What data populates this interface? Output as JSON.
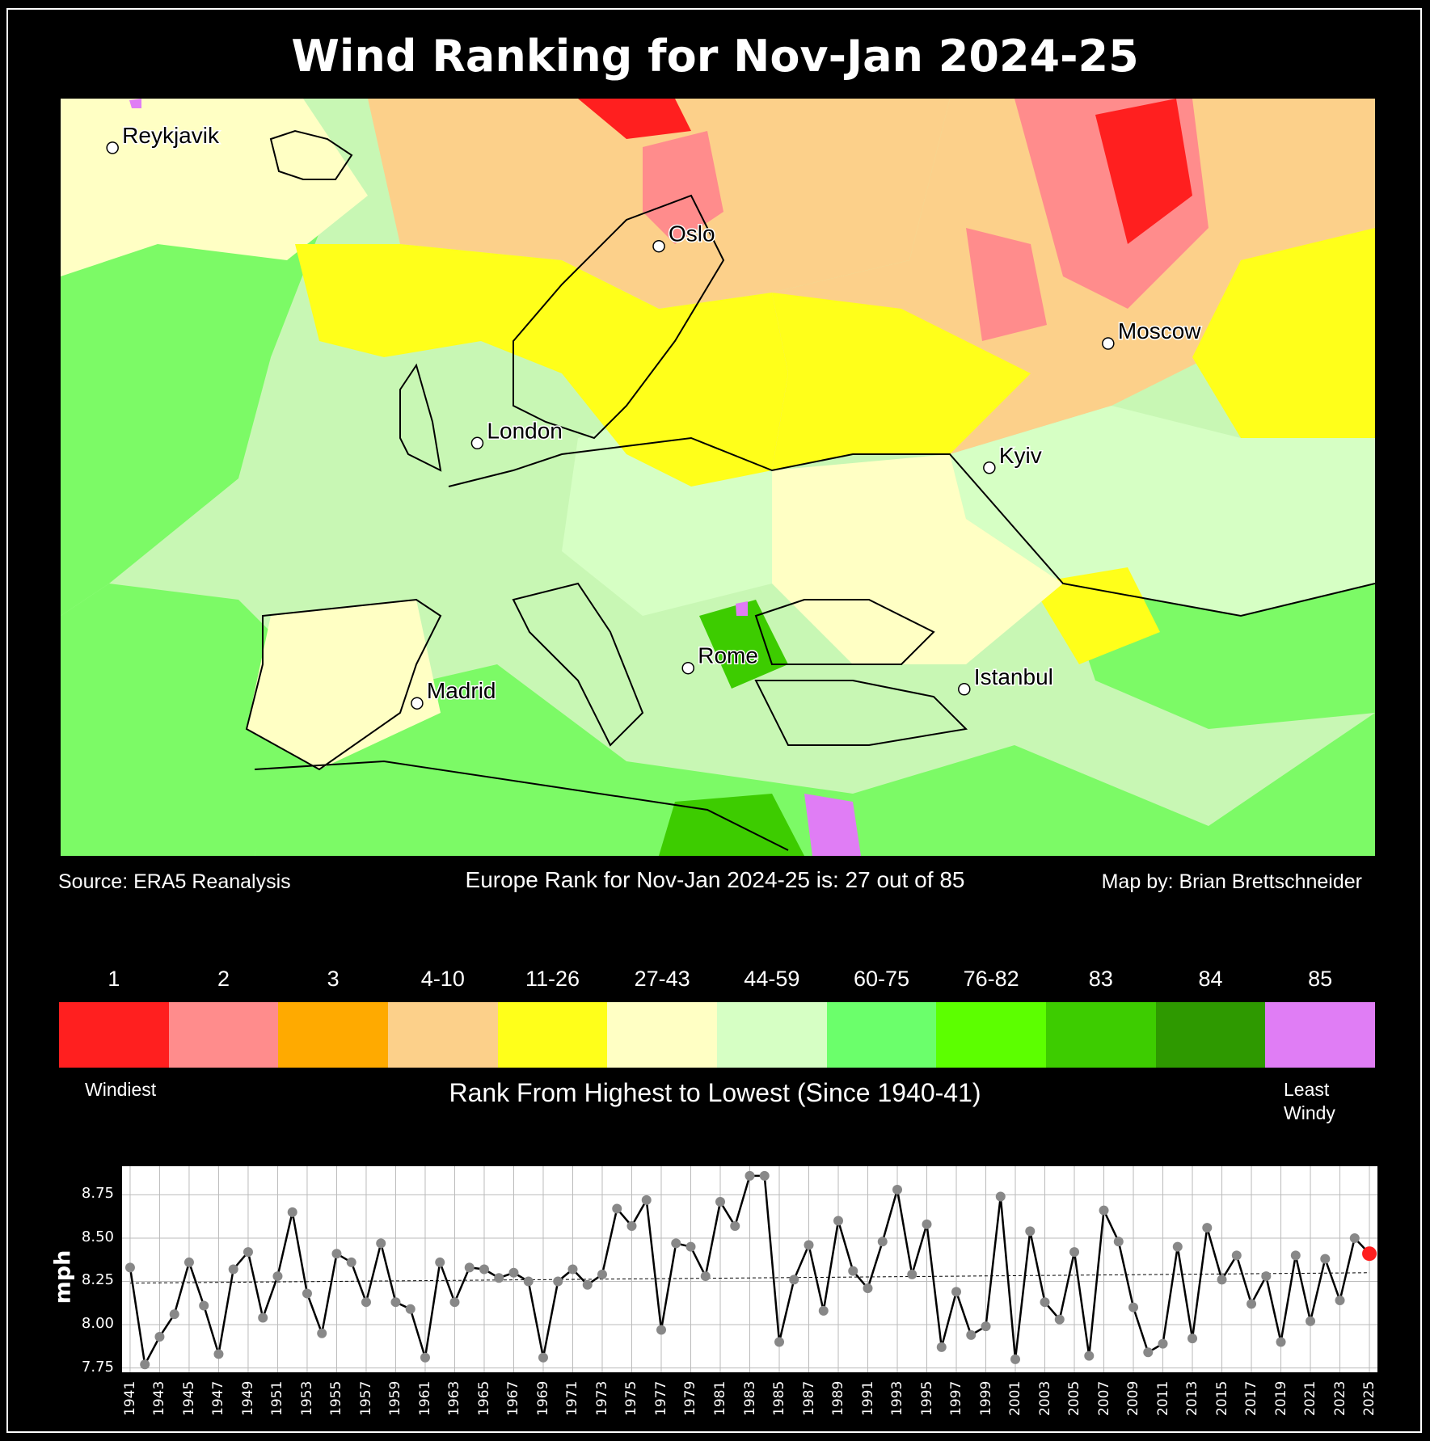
{
  "title": "Wind Ranking for Nov-Jan 2024-25",
  "map": {
    "cities": [
      {
        "name": "Reykjavik",
        "lon": -21.9,
        "lat": 64.1
      },
      {
        "name": "Oslo",
        "lon": 10.75,
        "lat": 59.9
      },
      {
        "name": "Moscow",
        "lon": 37.6,
        "lat": 55.75
      },
      {
        "name": "London",
        "lon": -0.1,
        "lat": 51.5
      },
      {
        "name": "Kyiv",
        "lon": 30.5,
        "lat": 50.45
      },
      {
        "name": "Madrid",
        "lon": -3.7,
        "lat": 40.4
      },
      {
        "name": "Rome",
        "lon": 12.5,
        "lat": 41.9
      },
      {
        "name": "Istanbul",
        "lon": 29.0,
        "lat": 41.0
      }
    ],
    "colors": {
      "land_default": "#c8f7b4",
      "sea": "#7cfa66"
    }
  },
  "footer": {
    "source": "Source: ERA5 Reanalysis",
    "rank_text": "Europe Rank for Nov-Jan 2024-25 is: 27 out of 85",
    "credit": "Map by: Brian Brettschneider"
  },
  "legend": {
    "items": [
      {
        "label": "1",
        "color": "#ff1f1f"
      },
      {
        "label": "2",
        "color": "#ff8c8c"
      },
      {
        "label": "3",
        "color": "#ffaa00"
      },
      {
        "label": "4-10",
        "color": "#fcd08a"
      },
      {
        "label": "11-26",
        "color": "#ffff1a"
      },
      {
        "label": "27-43",
        "color": "#ffffc4"
      },
      {
        "label": "44-59",
        "color": "#d6ffc4"
      },
      {
        "label": "60-75",
        "color": "#6bff6b"
      },
      {
        "label": "76-82",
        "color": "#5cff00"
      },
      {
        "label": "83",
        "color": "#3dcc00"
      },
      {
        "label": "84",
        "color": "#2e9900"
      },
      {
        "label": "85",
        "color": "#e07df5"
      }
    ],
    "windiest": "Windiest",
    "least_windy_1": "Least",
    "least_windy_2": "Windy",
    "caption": "Rank From Highest to Lowest (Since 1940-41)"
  },
  "chart_data": {
    "type": "line",
    "ylabel": "mph",
    "ylim": [
      7.72,
      8.92
    ],
    "yticks": [
      7.75,
      8.0,
      8.25,
      8.5,
      8.75
    ],
    "x": [
      1941,
      1942,
      1943,
      1944,
      1945,
      1946,
      1947,
      1948,
      1949,
      1950,
      1951,
      1952,
      1953,
      1954,
      1955,
      1956,
      1957,
      1958,
      1959,
      1960,
      1961,
      1962,
      1963,
      1964,
      1965,
      1966,
      1967,
      1968,
      1969,
      1970,
      1971,
      1972,
      1973,
      1974,
      1975,
      1976,
      1977,
      1978,
      1979,
      1980,
      1981,
      1982,
      1983,
      1984,
      1985,
      1986,
      1987,
      1988,
      1989,
      1990,
      1991,
      1992,
      1993,
      1994,
      1995,
      1996,
      1997,
      1998,
      1999,
      2000,
      2001,
      2002,
      2003,
      2004,
      2005,
      2006,
      2007,
      2008,
      2009,
      2010,
      2011,
      2012,
      2013,
      2014,
      2015,
      2016,
      2017,
      2018,
      2019,
      2020,
      2021,
      2022,
      2023,
      2024,
      2025
    ],
    "values": [
      8.33,
      7.77,
      7.93,
      8.06,
      8.36,
      8.11,
      7.83,
      8.32,
      8.42,
      8.04,
      8.28,
      8.65,
      8.18,
      7.95,
      8.41,
      8.36,
      8.13,
      8.47,
      8.13,
      8.09,
      7.81,
      8.36,
      8.13,
      8.33,
      8.32,
      8.27,
      8.3,
      8.25,
      7.81,
      8.25,
      8.32,
      8.23,
      8.29,
      8.67,
      8.57,
      8.72,
      7.97,
      8.47,
      8.45,
      8.28,
      8.71,
      8.57,
      8.86,
      8.86,
      7.9,
      8.26,
      8.46,
      8.08,
      8.6,
      8.31,
      8.21,
      8.48,
      8.78,
      8.29,
      8.58,
      7.87,
      8.19,
      7.94,
      7.99,
      8.74,
      7.8,
      8.54,
      8.13,
      8.03,
      8.42,
      7.82,
      8.66,
      8.48,
      8.1,
      7.84,
      7.89,
      8.45,
      7.92,
      8.56,
      8.26,
      8.4,
      8.12,
      8.28,
      7.9,
      8.4,
      8.02,
      8.38,
      8.14,
      8.5,
      8.41
    ],
    "trend": [
      8.24,
      8.3
    ],
    "highlight_x": 2025,
    "grid": true
  }
}
